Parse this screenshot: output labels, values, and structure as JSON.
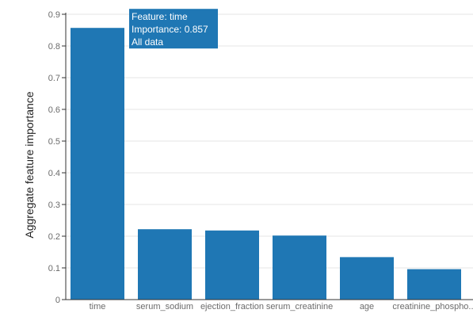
{
  "chart_data": {
    "type": "bar",
    "categories": [
      "time",
      "serum_sodium",
      "ejection_fraction",
      "serum_creatinine",
      "age",
      "creatinine_phospho..."
    ],
    "values": [
      0.857,
      0.222,
      0.218,
      0.202,
      0.134,
      0.096
    ],
    "title": "",
    "xlabel": "",
    "ylabel": "Aggregate feature importance",
    "ylim": [
      0,
      0.9
    ],
    "yticks": [
      0,
      0.1,
      0.2,
      0.3,
      0.4,
      0.5,
      0.6,
      0.7,
      0.8,
      0.9
    ],
    "ytick_labels": [
      "0",
      "0.1",
      "0.2",
      "0.3",
      "0.4",
      "0.5",
      "0.6",
      "0.7",
      "0.8",
      "0.9"
    ],
    "grid": true,
    "bar_color": "#1f77b4",
    "grid_color": "#e6e6e6",
    "tooltip": {
      "visible": true,
      "lines": [
        "Feature: time",
        "Importance: 0.857",
        "All data"
      ],
      "background": "#1f77b4",
      "target_category": "time"
    }
  }
}
